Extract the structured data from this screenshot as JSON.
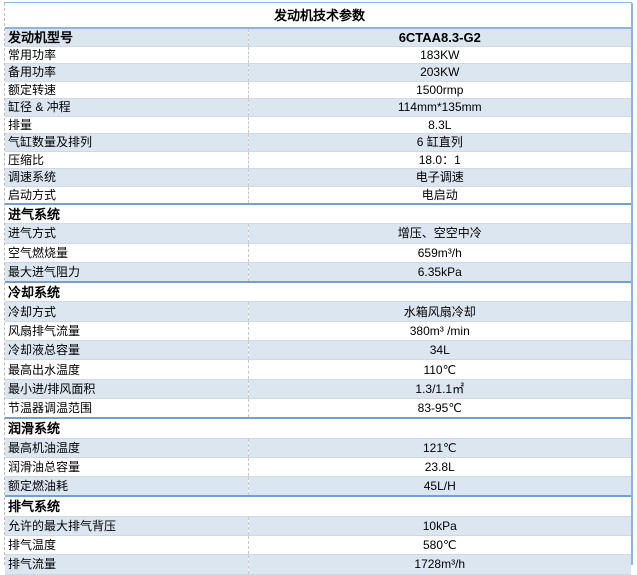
{
  "title": "发动机技术参数",
  "model": {
    "label": "发动机型号",
    "value": "6CTAA8.3-G2"
  },
  "general": [
    {
      "label": "常用功率",
      "value": "183KW"
    },
    {
      "label": "备用功率",
      "value": "203KW"
    },
    {
      "label": "额定转速",
      "value": "1500rmp"
    },
    {
      "label": "缸径 & 冲程",
      "value": "114mm*135mm"
    },
    {
      "label": "排量",
      "value": "8.3L"
    },
    {
      "label": "气缸数量及排列",
      "value": "6 缸直列"
    },
    {
      "label": "压缩比",
      "value": "18.0：1"
    },
    {
      "label": "调速系统",
      "value": "电子调速"
    },
    {
      "label": "启动方式",
      "value": "电启动"
    }
  ],
  "intake": {
    "header": "进气系统",
    "rows": [
      {
        "label": "进气方式",
        "value": "增压、空空中冷"
      },
      {
        "label": "空气燃烧量",
        "value": "659m³/h"
      },
      {
        "label": "最大进气阻力",
        "value": "6.35kPa"
      }
    ]
  },
  "cooling": {
    "header": "冷却系统",
    "rows": [
      {
        "label": "冷却方式",
        "value": "水箱风扇冷却"
      },
      {
        "label": "风扇排气流量",
        "value": "380m³  /min"
      },
      {
        "label": "冷却液总容量",
        "value": "34L"
      },
      {
        "label": "最高出水温度",
        "value": "110℃"
      },
      {
        "label": "最小进/排风面积",
        "value": "1.3/1.1㎡"
      },
      {
        "label": "节温器调温范围",
        "value": "83-95℃"
      }
    ]
  },
  "lubrication": {
    "header": "润滑系统",
    "rows": [
      {
        "label": "最高机油温度",
        "value": "121℃"
      },
      {
        "label": "润滑油总容量",
        "value": "23.8L"
      },
      {
        "label": "额定燃油耗",
        "value": "45L/H"
      }
    ]
  },
  "exhaust": {
    "header": "排气系统",
    "rows": [
      {
        "label": "允许的最大排气背压",
        "value": "10kPa"
      },
      {
        "label": "排气温度",
        "value": "580℃"
      },
      {
        "label": "排气流量",
        "value": "1728m³/h"
      }
    ]
  },
  "colors": {
    "shade": "#dce6f1",
    "border": "#8db4e2"
  }
}
